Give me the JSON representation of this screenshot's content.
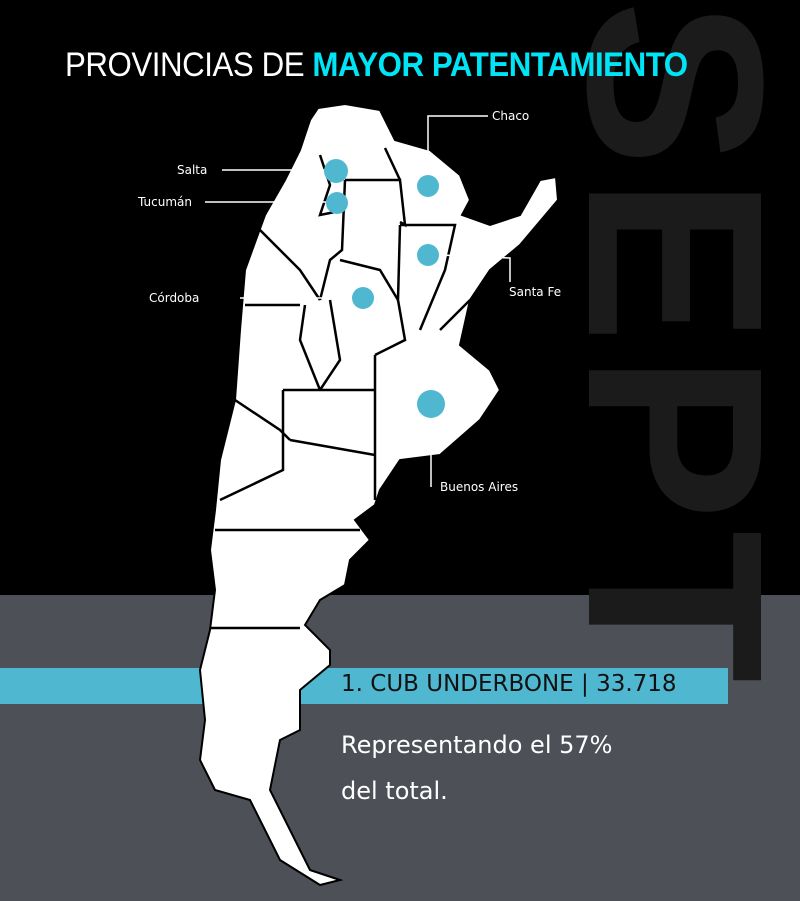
{
  "title": {
    "prefix": "PROVINCIAS DE ",
    "highlight": "MAYOR PATENTAMIENTO"
  },
  "watermark": "SEPT",
  "provinces": [
    {
      "name": "Chaco"
    },
    {
      "name": "Salta"
    },
    {
      "name": "Tucumán"
    },
    {
      "name": "Santa Fe"
    },
    {
      "name": "Córdoba"
    },
    {
      "name": "Buenos Aires"
    }
  ],
  "ranking": {
    "label": "1. CUB UNDERBONE | 33.718",
    "description_line1": "Representando el 57%",
    "description_line2": "del total."
  },
  "colors": {
    "accent": "#00e5f5",
    "marker": "#4fb8d0",
    "bar": "#4fb8d0",
    "bottom_bg": "#4d5157",
    "map_fill": "#ffffff"
  }
}
